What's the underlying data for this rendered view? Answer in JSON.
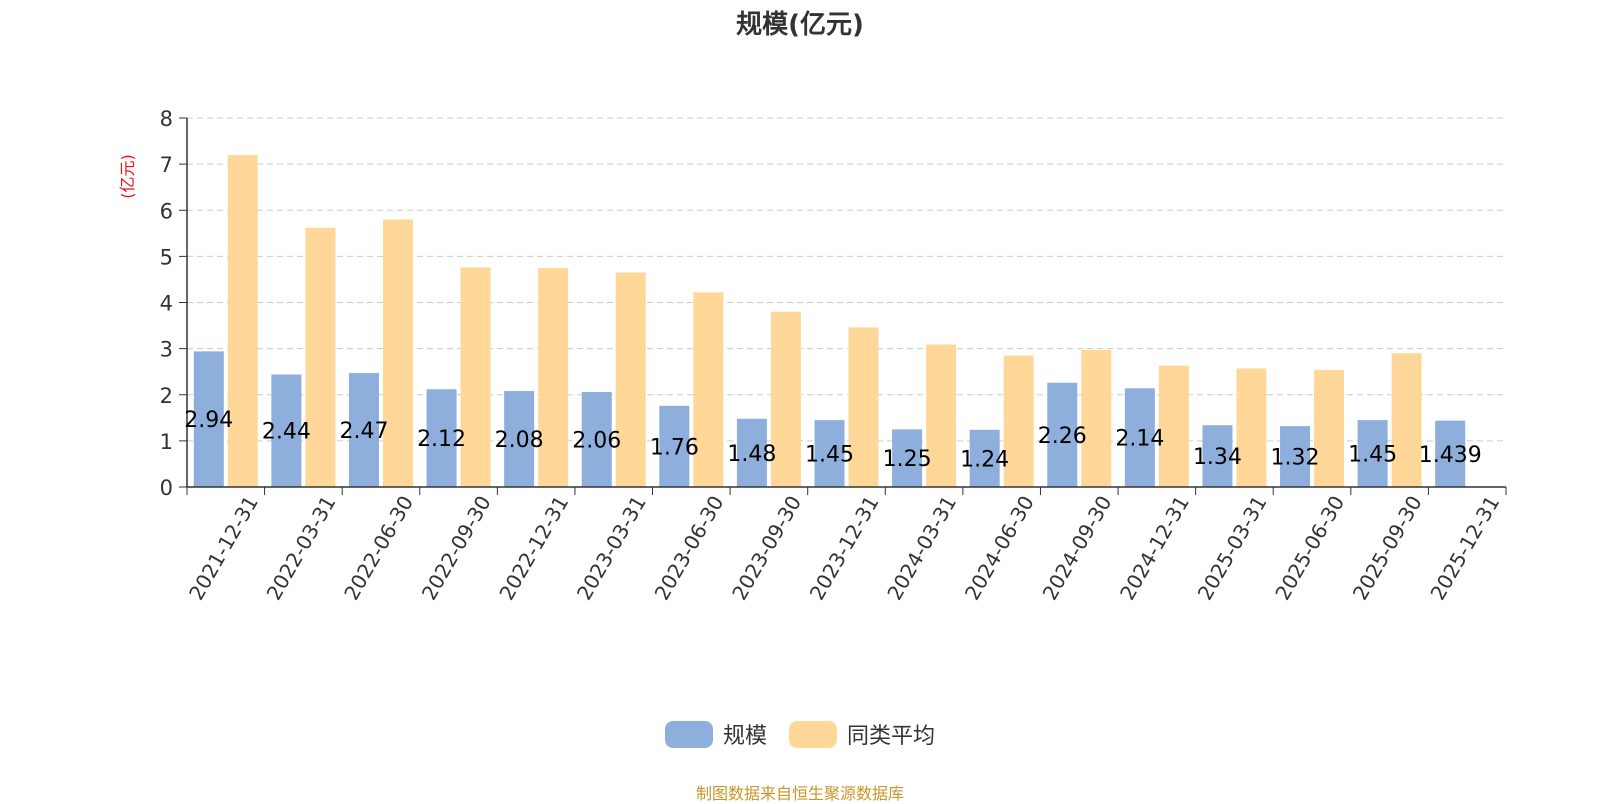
{
  "chart_data": {
    "type": "bar",
    "title": "规模(亿元)",
    "ylabel": "(亿元)",
    "ylim": [
      0,
      8
    ],
    "yticks": [
      0,
      1,
      2,
      3,
      4,
      5,
      6,
      7,
      8
    ],
    "grid": "horizontal dashed",
    "legend_position": "bottom-center",
    "categories": [
      "2021-12-31",
      "2022-03-31",
      "2022-06-30",
      "2022-09-30",
      "2022-12-31",
      "2023-03-31",
      "2023-06-30",
      "2023-09-30",
      "2023-12-31",
      "2024-03-31",
      "2024-06-30",
      "2024-09-30",
      "2024-12-31",
      "2025-03-31",
      "2025-06-30",
      "2025-09-30",
      "2025-12-31"
    ],
    "series": [
      {
        "name": "规模",
        "color": "#8eaedb",
        "values": [
          2.94,
          2.44,
          2.47,
          2.12,
          2.08,
          2.06,
          1.76,
          1.48,
          1.45,
          1.25,
          1.24,
          2.26,
          2.14,
          1.34,
          1.32,
          1.45,
          1.439
        ],
        "labels": [
          "2.94",
          "2.44",
          "2.47",
          "2.12",
          "2.08",
          "2.06",
          "1.76",
          "1.48",
          "1.45",
          "1.25",
          "1.24",
          "2.26",
          "2.14",
          "1.34",
          "1.32",
          "1.45",
          "1.439"
        ]
      },
      {
        "name": "同类平均",
        "color": "#ffd899",
        "values": [
          7.2,
          5.62,
          5.8,
          4.76,
          4.75,
          4.65,
          4.22,
          3.8,
          3.46,
          3.09,
          2.85,
          2.97,
          2.63,
          2.57,
          2.54,
          2.9,
          null
        ]
      }
    ],
    "source_note": "制图数据来自恒生聚源数据库"
  }
}
